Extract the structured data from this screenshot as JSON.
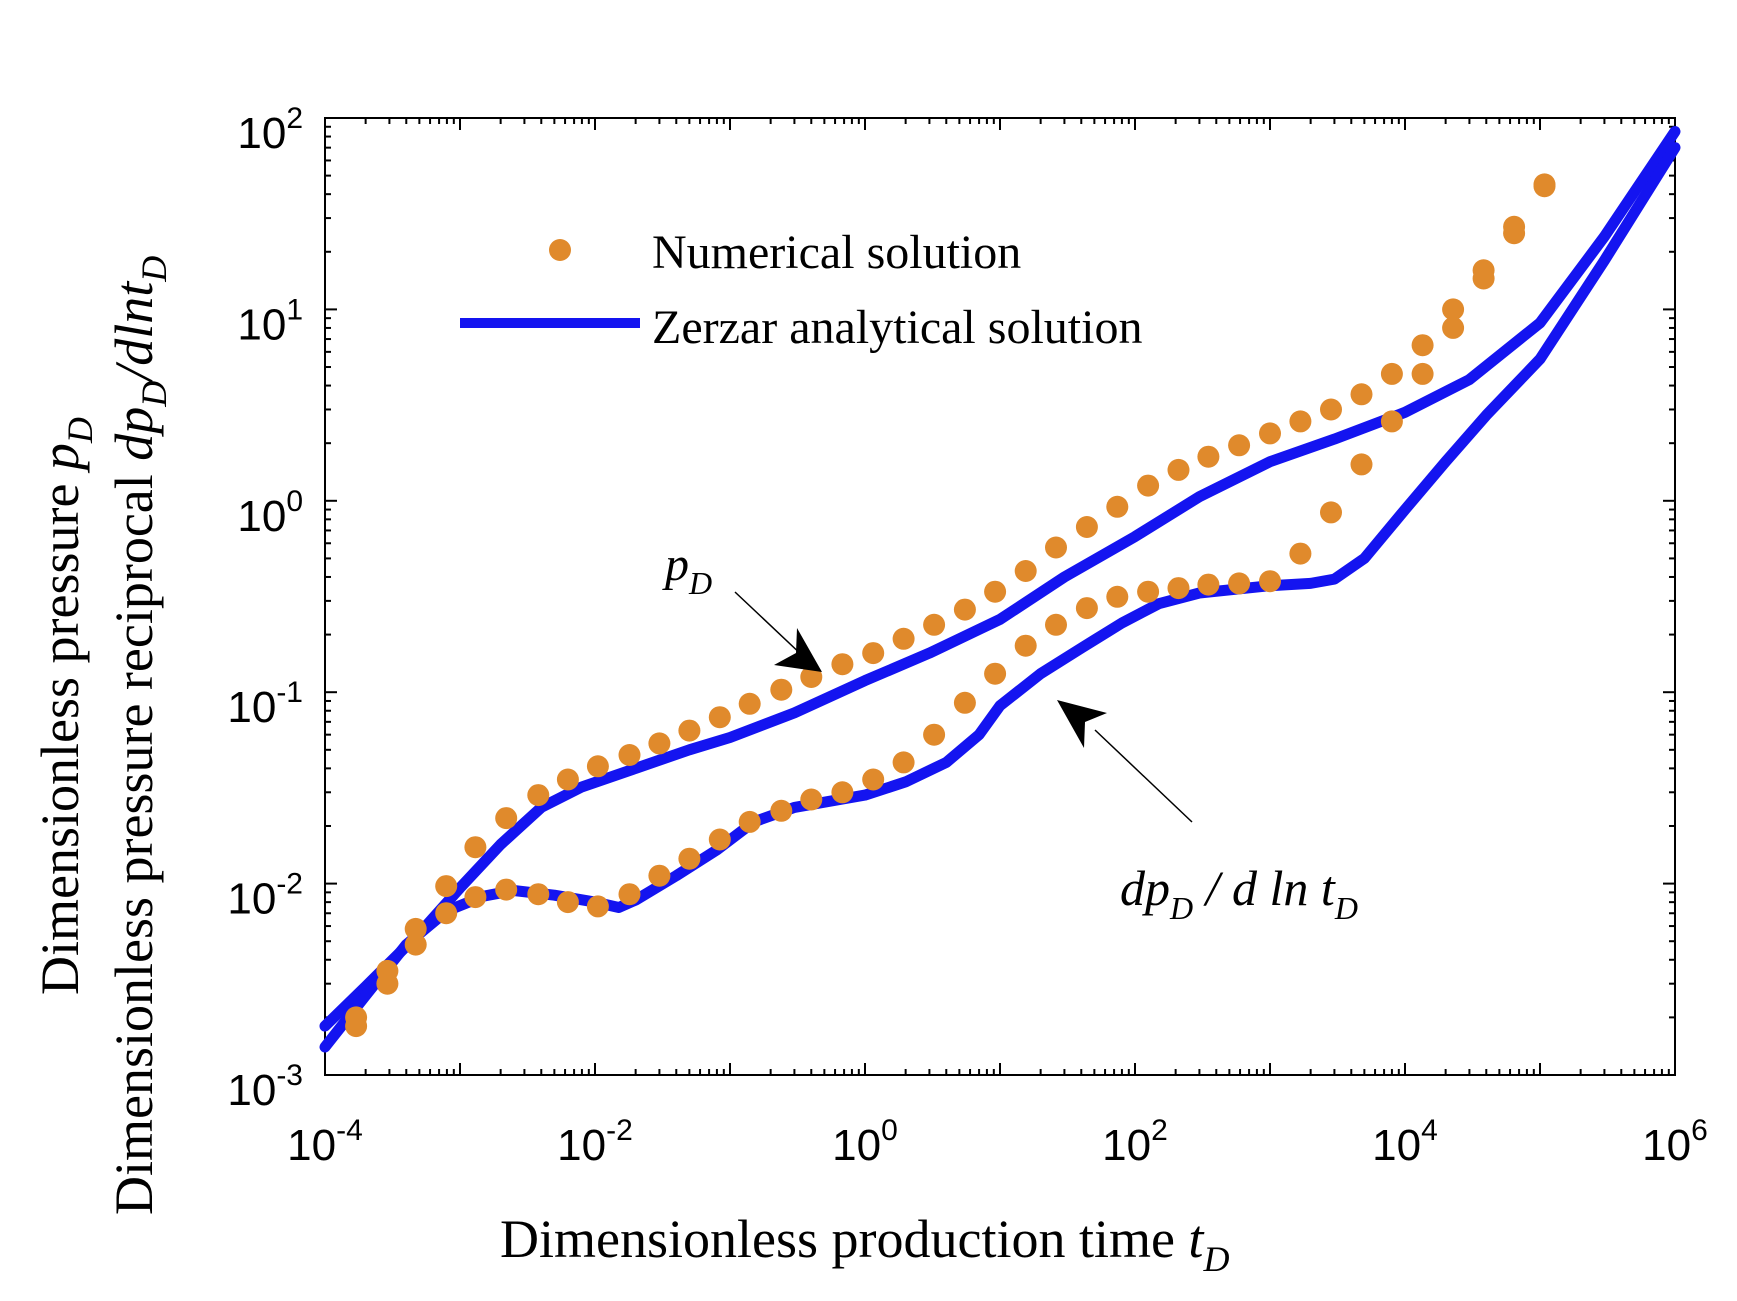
{
  "chart_data": {
    "type": "line",
    "x_scale": "log",
    "y_scale": "log",
    "xlim": [
      0.0001,
      1000000
    ],
    "ylim": [
      0.001,
      100
    ],
    "x_ticks": [
      {
        "value": 0.0001,
        "base": "10",
        "exp": "-4"
      },
      {
        "value": 0.01,
        "base": "10",
        "exp": "-2"
      },
      {
        "value": 1,
        "base": "10",
        "exp": "0"
      },
      {
        "value": 100,
        "base": "10",
        "exp": "2"
      },
      {
        "value": 10000,
        "base": "10",
        "exp": "4"
      },
      {
        "value": 1000000,
        "base": "10",
        "exp": "6"
      }
    ],
    "y_ticks": [
      {
        "value": 0.001,
        "base": "10",
        "exp": "-3"
      },
      {
        "value": 0.01,
        "base": "10",
        "exp": "-2"
      },
      {
        "value": 0.1,
        "base": "10",
        "exp": "-1"
      },
      {
        "value": 1,
        "base": "10",
        "exp": "0"
      },
      {
        "value": 10,
        "base": "10",
        "exp": "1"
      },
      {
        "value": 100,
        "base": "10",
        "exp": "2"
      }
    ],
    "xlabel": {
      "text": "Dimensionless production time ",
      "var": "t",
      "sub": "D"
    },
    "ylabel_line1": {
      "text": "Dimensionless pressure ",
      "var": "p",
      "sub": "D"
    },
    "ylabel_line2": {
      "text": "Dimensionless pressure reciprocal ",
      "p1": "dp",
      "s1": "D",
      "p2": "/dlnt",
      "s2": "D"
    },
    "legend": {
      "position": "top-left",
      "numerical_label": "Numerical solution",
      "analytical_label": "Zerzar analytical solution"
    },
    "colors": {
      "line": "#1414f0",
      "marker": "#e08a2c",
      "axis": "#000000"
    },
    "series": [
      {
        "name": "pD",
        "line": [
          [
            0.0001,
            0.0018
          ],
          [
            0.0002,
            0.0029
          ],
          [
            0.0005,
            0.0055
          ],
          [
            0.001,
            0.0095
          ],
          [
            0.002,
            0.016
          ],
          [
            0.004,
            0.025
          ],
          [
            0.008,
            0.032
          ],
          [
            0.02,
            0.04
          ],
          [
            0.05,
            0.05
          ],
          [
            0.1,
            0.058
          ],
          [
            0.3,
            0.078
          ],
          [
            1,
            0.115
          ],
          [
            3,
            0.16
          ],
          [
            10,
            0.24
          ],
          [
            30,
            0.4
          ],
          [
            100,
            0.65
          ],
          [
            300,
            1.05
          ],
          [
            1000,
            1.6
          ],
          [
            3000,
            2.1
          ],
          [
            10000,
            2.9
          ],
          [
            30000,
            4.3
          ],
          [
            100000,
            8.5
          ],
          [
            300000,
            24
          ],
          [
            1000000,
            85
          ]
        ],
        "points": [
          [
            0.00017,
            0.002
          ],
          [
            0.00029,
            0.0035
          ],
          [
            0.00047,
            0.0058
          ],
          [
            0.00079,
            0.0097
          ],
          [
            0.0013,
            0.0155
          ],
          [
            0.0022,
            0.022
          ],
          [
            0.0038,
            0.029
          ],
          [
            0.0063,
            0.035
          ],
          [
            0.0105,
            0.041
          ],
          [
            0.018,
            0.047
          ],
          [
            0.03,
            0.054
          ],
          [
            0.05,
            0.063
          ],
          [
            0.084,
            0.074
          ],
          [
            0.14,
            0.087
          ],
          [
            0.24,
            0.103
          ],
          [
            0.4,
            0.12
          ],
          [
            0.68,
            0.14
          ],
          [
            1.15,
            0.16
          ],
          [
            1.93,
            0.19
          ],
          [
            3.25,
            0.225
          ],
          [
            5.5,
            0.27
          ],
          [
            9.2,
            0.335
          ],
          [
            15.5,
            0.43
          ],
          [
            26,
            0.57
          ],
          [
            44,
            0.73
          ],
          [
            74,
            0.93
          ],
          [
            125,
            1.2
          ],
          [
            210,
            1.45
          ],
          [
            350,
            1.7
          ],
          [
            590,
            1.95
          ],
          [
            1000,
            2.25
          ],
          [
            1680,
            2.6
          ],
          [
            2830,
            3.0
          ],
          [
            4760,
            3.6
          ],
          [
            8000,
            4.6
          ],
          [
            13500,
            6.5
          ],
          [
            22700,
            10
          ],
          [
            38200,
            16
          ],
          [
            64300,
            27
          ],
          [
            108000,
            45
          ]
        ]
      },
      {
        "name": "dpD/dlntD",
        "line": [
          [
            0.0001,
            0.0014
          ],
          [
            0.0002,
            0.0026
          ],
          [
            0.0004,
            0.0048
          ],
          [
            0.0008,
            0.0072
          ],
          [
            0.0015,
            0.0086
          ],
          [
            0.0025,
            0.0092
          ],
          [
            0.005,
            0.0087
          ],
          [
            0.01,
            0.008
          ],
          [
            0.015,
            0.0075
          ],
          [
            0.02,
            0.0082
          ],
          [
            0.04,
            0.011
          ],
          [
            0.08,
            0.015
          ],
          [
            0.15,
            0.021
          ],
          [
            0.3,
            0.025
          ],
          [
            1,
            0.029
          ],
          [
            2,
            0.034
          ],
          [
            4,
            0.043
          ],
          [
            7,
            0.06
          ],
          [
            10,
            0.085
          ],
          [
            20,
            0.125
          ],
          [
            40,
            0.17
          ],
          [
            80,
            0.23
          ],
          [
            150,
            0.29
          ],
          [
            300,
            0.33
          ],
          [
            1000,
            0.36
          ],
          [
            2000,
            0.37
          ],
          [
            3000,
            0.39
          ],
          [
            5000,
            0.5
          ],
          [
            10000,
            0.9
          ],
          [
            20000,
            1.6
          ],
          [
            40000,
            2.8
          ],
          [
            100000,
            5.5
          ],
          [
            300000,
            18
          ],
          [
            1000000,
            70
          ]
        ],
        "points": [
          [
            0.00017,
            0.0018
          ],
          [
            0.00029,
            0.003
          ],
          [
            0.00047,
            0.0048
          ],
          [
            0.00079,
            0.007
          ],
          [
            0.0013,
            0.0085
          ],
          [
            0.0022,
            0.0093
          ],
          [
            0.0038,
            0.0088
          ],
          [
            0.0063,
            0.008
          ],
          [
            0.0105,
            0.0076
          ],
          [
            0.018,
            0.0088
          ],
          [
            0.03,
            0.011
          ],
          [
            0.05,
            0.0135
          ],
          [
            0.084,
            0.017
          ],
          [
            0.14,
            0.021
          ],
          [
            0.24,
            0.024
          ],
          [
            0.4,
            0.0275
          ],
          [
            0.68,
            0.03
          ],
          [
            1.15,
            0.035
          ],
          [
            1.93,
            0.043
          ],
          [
            3.25,
            0.06
          ],
          [
            5.5,
            0.088
          ],
          [
            9.2,
            0.125
          ],
          [
            15.5,
            0.175
          ],
          [
            26,
            0.225
          ],
          [
            44,
            0.275
          ],
          [
            74,
            0.315
          ],
          [
            125,
            0.335
          ],
          [
            210,
            0.35
          ],
          [
            350,
            0.365
          ],
          [
            590,
            0.37
          ],
          [
            1000,
            0.38
          ],
          [
            1680,
            0.53
          ],
          [
            2830,
            0.87
          ],
          [
            4760,
            1.55
          ],
          [
            8000,
            2.6
          ],
          [
            13500,
            4.6
          ],
          [
            22700,
            8
          ],
          [
            38200,
            14.5
          ],
          [
            64300,
            25
          ],
          [
            108000,
            44
          ]
        ]
      }
    ],
    "annotations": {
      "pD": {
        "var": "p",
        "sub": "D"
      },
      "dpD": {
        "a": "dp",
        "sub1": "D",
        "b": " / d ln ",
        "c": "t",
        "sub2": "D"
      }
    }
  }
}
